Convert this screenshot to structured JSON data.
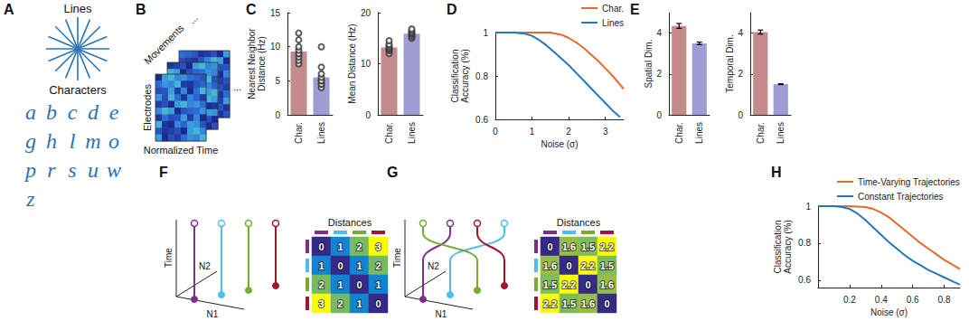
{
  "panel_letters": [
    "A",
    "B",
    "C",
    "D",
    "E",
    "F",
    "G",
    "H"
  ],
  "diagrams": {
    "A": {
      "titles": [
        "Lines",
        "Characters"
      ],
      "characters": [
        "a",
        "b",
        "c",
        "d",
        "e",
        "g",
        "h",
        "l",
        "m",
        "o",
        "p",
        "r",
        "s",
        "u",
        "w",
        "z"
      ]
    },
    "B": {
      "stack_label": "Movements",
      "row_label": "Electrodes",
      "column_label": "Normalized Time",
      "ellipsis": "..."
    },
    "F": {
      "axis_labels": [
        "Time",
        "N1",
        "N2"
      ]
    },
    "G": {
      "axis_labels": [
        "Time",
        "N1",
        "N2"
      ]
    }
  },
  "chart_data": [
    {
      "type": "bar",
      "ylabel": "Nearest Neighbor Distance (Hz)",
      "categories": [
        "Char.",
        "Lines"
      ],
      "values": [
        9.3,
        5.5
      ],
      "colors": [
        "#c38b8c",
        "#9f9cd3"
      ],
      "points": [
        [
          7.5,
          8,
          8.5,
          9,
          9,
          9.5,
          10,
          11,
          12
        ],
        [
          4,
          4.5,
          4.5,
          5,
          5,
          5.5,
          6,
          7,
          10
        ]
      ],
      "ylim": [
        0,
        15
      ],
      "yticks": [
        0,
        5,
        10,
        15
      ]
    },
    {
      "type": "bar",
      "ylabel": "Mean Distance (Hz)",
      "categories": [
        "Char.",
        "Lines"
      ],
      "values": [
        13.2,
        15.9
      ],
      "colors": [
        "#c38b8c",
        "#9f9cd3"
      ],
      "points": [
        [
          12,
          12.5,
          12.8,
          13,
          13.2,
          13.5,
          13.8,
          14.5
        ],
        [
          15,
          15.3,
          15.6,
          15.9,
          16,
          16.2,
          16.5,
          16.8
        ]
      ],
      "ylim": [
        0,
        20
      ],
      "yticks": [
        0,
        10,
        20
      ]
    },
    {
      "type": "line",
      "xlabel": "Noise (σ)",
      "ylabel": "Classification Accuracy (%)",
      "legend": "top-right",
      "xlim": [
        0,
        3.5
      ],
      "xticks": [
        0,
        1,
        2,
        3
      ],
      "ylim": [
        0.6,
        1
      ],
      "yticks": [
        0.6,
        0.8,
        1
      ],
      "series": [
        {
          "name": "Char.",
          "color": "#e8692c",
          "x": [
            0,
            0.5,
            1,
            1.5,
            1.8,
            2,
            2.2,
            2.4,
            2.6,
            2.8,
            3,
            3.2,
            3.5
          ],
          "values": [
            1,
            1,
            1,
            1,
            0.99,
            0.975,
            0.955,
            0.93,
            0.9,
            0.87,
            0.835,
            0.8,
            0.74
          ]
        },
        {
          "name": "Lines",
          "color": "#2678b8",
          "x": [
            0,
            0.5,
            0.8,
            1,
            1.2,
            1.4,
            1.6,
            1.8,
            2,
            2.2,
            2.4,
            2.6,
            2.8,
            3,
            3.2,
            3.4
          ],
          "values": [
            1,
            1,
            0.995,
            0.985,
            0.965,
            0.94,
            0.91,
            0.88,
            0.85,
            0.815,
            0.78,
            0.745,
            0.71,
            0.675,
            0.64,
            0.61
          ]
        }
      ]
    },
    {
      "type": "bar",
      "ylabel": "Spatial Dim.",
      "categories": [
        "Char.",
        "Lines"
      ],
      "values": [
        4.35,
        3.5
      ],
      "errors": [
        0.12,
        0.06
      ],
      "colors": [
        "#c38b8c",
        "#9f9cd3"
      ],
      "ylim": [
        0,
        5
      ],
      "yticks": [
        0,
        2,
        4
      ]
    },
    {
      "type": "bar",
      "ylabel": "Temporal Dim.",
      "categories": [
        "Char.",
        "Lines"
      ],
      "values": [
        4.05,
        1.5
      ],
      "errors": [
        0.1,
        0.02
      ],
      "colors": [
        "#c38b8c",
        "#9f9cd3"
      ],
      "ylim": [
        0,
        5
      ],
      "yticks": [
        0,
        2,
        4
      ]
    },
    {
      "type": "heatmap",
      "title": "Distances",
      "cells": [
        [
          0,
          1,
          2,
          3
        ],
        [
          1,
          0,
          1,
          2
        ],
        [
          2,
          1,
          0,
          1
        ],
        [
          3,
          2,
          1,
          0
        ]
      ],
      "colors": [
        "#7e2f8e",
        "#4dbeee",
        "#77ac30",
        "#a2142f"
      ]
    },
    {
      "type": "heatmap",
      "title": "Distances",
      "cells": [
        [
          0,
          1.6,
          1.5,
          2.2
        ],
        [
          1.6,
          0,
          2.2,
          1.5
        ],
        [
          1.5,
          2.2,
          0,
          1.6
        ],
        [
          2.2,
          1.5,
          1.6,
          0
        ]
      ],
      "colors": [
        "#7e2f8e",
        "#4dbeee",
        "#77ac30",
        "#a2142f"
      ]
    },
    {
      "type": "line",
      "xlabel": "Noise (σ)",
      "ylabel": "Classification Accuracy (%)",
      "legend": "top-right",
      "xlim": [
        0,
        0.9
      ],
      "xticks": [
        0.2,
        0.4,
        0.6,
        0.8
      ],
      "ylim": [
        0.56,
        1
      ],
      "yticks": [
        0.6,
        0.8,
        1
      ],
      "series": [
        {
          "name": "Time-Varying Trajectories",
          "color": "#e8692c",
          "x": [
            0,
            0.2,
            0.3,
            0.35,
            0.4,
            0.45,
            0.5,
            0.55,
            0.6,
            0.65,
            0.7,
            0.75,
            0.8,
            0.85,
            0.9
          ],
          "values": [
            1,
            1,
            0.995,
            0.985,
            0.965,
            0.94,
            0.905,
            0.87,
            0.835,
            0.8,
            0.77,
            0.74,
            0.71,
            0.685,
            0.66
          ]
        },
        {
          "name": "Constant Trajectories",
          "color": "#2678b8",
          "x": [
            0,
            0.1,
            0.15,
            0.2,
            0.25,
            0.3,
            0.35,
            0.4,
            0.45,
            0.5,
            0.55,
            0.6,
            0.65,
            0.7,
            0.75,
            0.8,
            0.85,
            0.9
          ],
          "values": [
            1,
            1,
            0.995,
            0.985,
            0.96,
            0.925,
            0.885,
            0.845,
            0.805,
            0.77,
            0.735,
            0.705,
            0.68,
            0.655,
            0.635,
            0.615,
            0.595,
            0.575
          ]
        }
      ]
    }
  ]
}
